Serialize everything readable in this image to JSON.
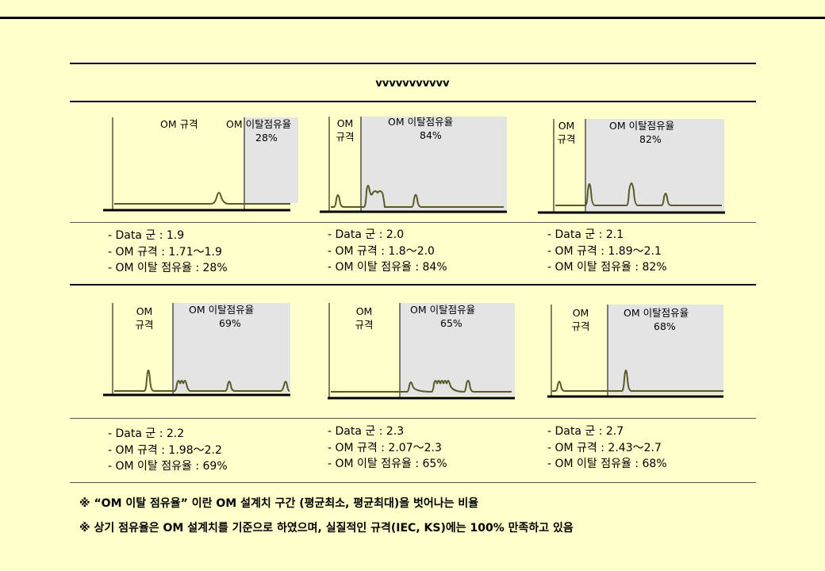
{
  "title": "vvvvvvvvvvv",
  "panels": [
    {
      "spec_label": "OM 규격",
      "dev_label": "OM 이탈점유율",
      "dev_pct": "28%",
      "stats": [
        "- Data 군 : 1.9",
        "- OM 규격 : 1.71～1.9",
        "- OM 이탈 점유율 : 28%"
      ]
    },
    {
      "spec_label": "OM 규격",
      "dev_label": "OM 이탈점유율",
      "dev_pct": "84%",
      "stats": [
        "- Data 군 : 2.0",
        "- OM 규격 : 1.8～2.0",
        "- OM 이탈 점유율 : 84%"
      ]
    },
    {
      "spec_label": "OM 규격",
      "dev_label": "OM 이탈점유율",
      "dev_pct": "82%",
      "stats": [
        "- Data 군 : 2.1",
        "- OM 규격 : 1.89～2.1",
        "- OM 이탈 점유율 : 82%"
      ]
    },
    {
      "spec_label": "OM 규격",
      "dev_label": "OM 이탈점유율",
      "dev_pct": "69%",
      "stats": [
        "- Data 군 : 2.2",
        "- OM 규격 : 1.98～2.2",
        "- OM 이탈 점유율 : 69%"
      ]
    },
    {
      "spec_label": "OM 규격",
      "dev_label": "OM 이탈점유율",
      "dev_pct": "65%",
      "stats": [
        "- Data 군 : 2.3",
        "- OM 규격 : 2.07～2.3",
        "- OM 이탈 점유율 : 65%"
      ]
    },
    {
      "spec_label": "OM 규격",
      "dev_label": "OM 이탈점유율",
      "dev_pct": "68%",
      "stats": [
        "- Data 군 : 2.7",
        "- OM 규격 : 2.43～2.7",
        "- OM 이탈 점유율 : 68%"
      ]
    }
  ],
  "notes": [
    "※ “OM 이탈 점유율” 이란 OM 설계치 구간 (평균최소, 평균최대)을 벗어나는 비율",
    "※ 상기 점유율은 OM 설계치를 기준으로 하였으며, 실질적인 규격(IEC, KS)에는 100% 만족하고 있음"
  ]
}
